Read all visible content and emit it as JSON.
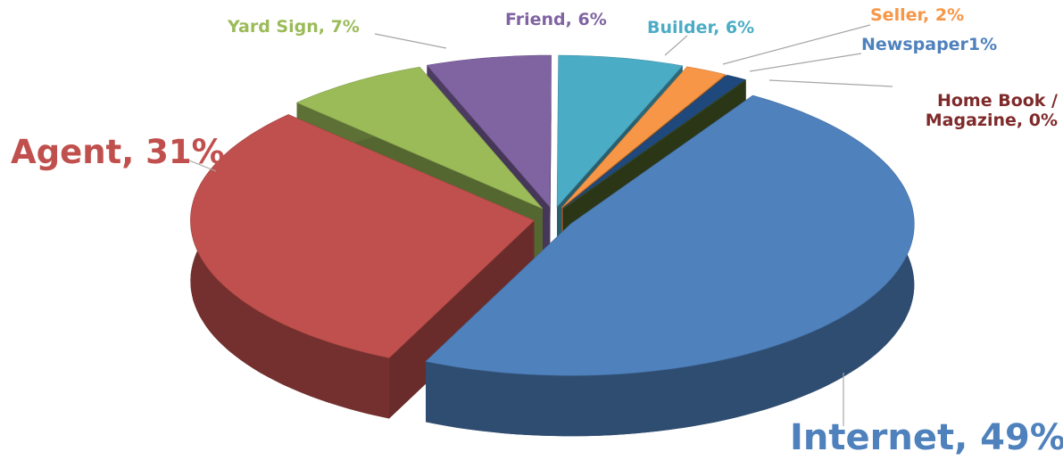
{
  "chart_data": {
    "type": "pie",
    "labels": [
      "Internet, 49%",
      "Agent, 31%",
      "Yard Sign, 7%",
      "Friend, 6%",
      "Builder, 6%",
      "Seller, 2%",
      "Newspaper1%",
      "Home Book / Magazine, 0%"
    ],
    "values": [
      49,
      31,
      7,
      6,
      6,
      2,
      1,
      0
    ],
    "colors": [
      "#4f81bd",
      "#c0504d",
      "#9bbb59",
      "#8064a2",
      "#4bacc6",
      "#f79646",
      "#1f497d",
      "#4f6228"
    ],
    "label_colors": [
      "#4f81bd",
      "#c0504d",
      "#9bbb59",
      "#8064a2",
      "#4bacc6",
      "#f79646",
      "#4f81bd",
      "#7f2a2a"
    ],
    "exploded": true,
    "three_d": true
  }
}
